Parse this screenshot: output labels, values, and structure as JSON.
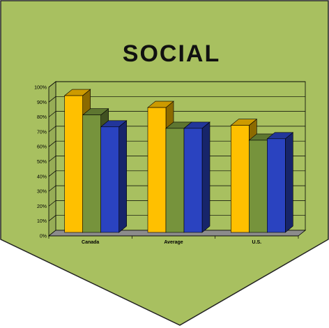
{
  "banner": {
    "title": "SOCIAL",
    "fill_color": "#a8c060",
    "border_color": "#222222"
  },
  "chart_data": {
    "type": "bar",
    "style": "3d-clustered",
    "title": "",
    "xlabel": "",
    "ylabel": "",
    "categories": [
      "Canada",
      "Average",
      "U.S."
    ],
    "series": [
      {
        "color": "#ffc000",
        "values": [
          92,
          84,
          72
        ]
      },
      {
        "color": "#76933c",
        "values": [
          79,
          70,
          62
        ]
      },
      {
        "color": "#2a43c0",
        "values": [
          71,
          70,
          63
        ]
      }
    ],
    "ylim": [
      0,
      100
    ],
    "yticks": [
      "0%",
      "10%",
      "20%",
      "30%",
      "40%",
      "50%",
      "60%",
      "70%",
      "80%",
      "90%",
      "100%"
    ],
    "grid": true,
    "legend": "none",
    "plot_background": "#a8c060"
  }
}
